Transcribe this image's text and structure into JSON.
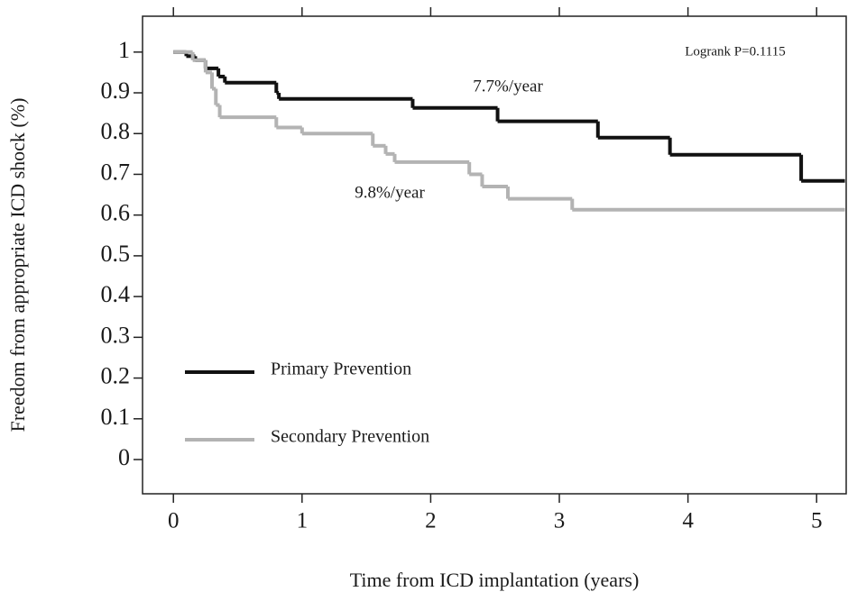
{
  "chart_data": {
    "type": "step",
    "x_label": "Time from ICD implantation (years)",
    "y_label": "Freedom from appropriate ICD shock (%)",
    "annotations": [
      "Logrank P=0.1115",
      "7.7%/year",
      "9.8%/year"
    ],
    "xlim": [
      -0.24,
      5.23
    ],
    "ylim": [
      -0.084,
      1.088
    ],
    "xticks": [
      0,
      1,
      2,
      3,
      4,
      5
    ],
    "yticks": [
      0,
      0.1,
      0.2,
      0.3,
      0.4,
      0.5,
      0.6,
      0.7,
      0.8,
      0.9,
      1
    ],
    "series": [
      {
        "name": "Primary Prevention",
        "color": "#111111",
        "x": [
          0,
          0.1,
          0.17,
          0.25,
          0.35,
          0.4,
          0.8,
          0.82,
          1.86,
          2.52,
          3.3,
          3.86,
          4.88,
          5.22
        ],
        "values": [
          1.0,
          0.99,
          0.98,
          0.96,
          0.94,
          0.925,
          0.9,
          0.885,
          0.863,
          0.83,
          0.79,
          0.748,
          0.684,
          0.684
        ]
      },
      {
        "name": "Secondary Prevention",
        "color": "#b3b3b3",
        "x": [
          0,
          0.15,
          0.25,
          0.3,
          0.33,
          0.36,
          0.8,
          1.0,
          1.55,
          1.65,
          1.72,
          2.3,
          2.4,
          2.6,
          3.1,
          5.22
        ],
        "values": [
          1.0,
          0.98,
          0.95,
          0.91,
          0.87,
          0.84,
          0.815,
          0.8,
          0.77,
          0.75,
          0.73,
          0.7,
          0.67,
          0.64,
          0.613,
          0.613
        ]
      }
    ]
  }
}
